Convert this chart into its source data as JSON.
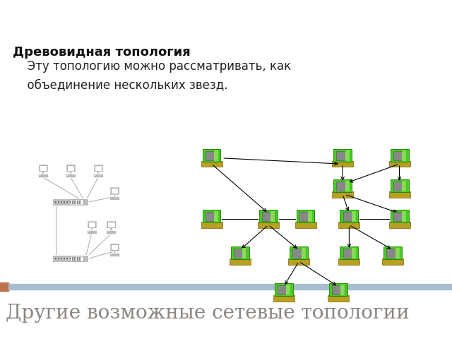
{
  "title": "Другие возможные сетевые топологии",
  "title_color": "#8B8580",
  "title_fontsize": 20,
  "header_bar_color1": "#C0724A",
  "header_bar_color2": "#A8BDD0",
  "subtitle": "Древовидная топология",
  "subtitle_fontsize": 13,
  "subtitle_color": "#111111",
  "body_text": "  Эту топологию можно рассматривать, как\n  объединение нескольких звезд.",
  "body_fontsize": 12,
  "body_color": "#222222",
  "bg_color": "#ffffff"
}
